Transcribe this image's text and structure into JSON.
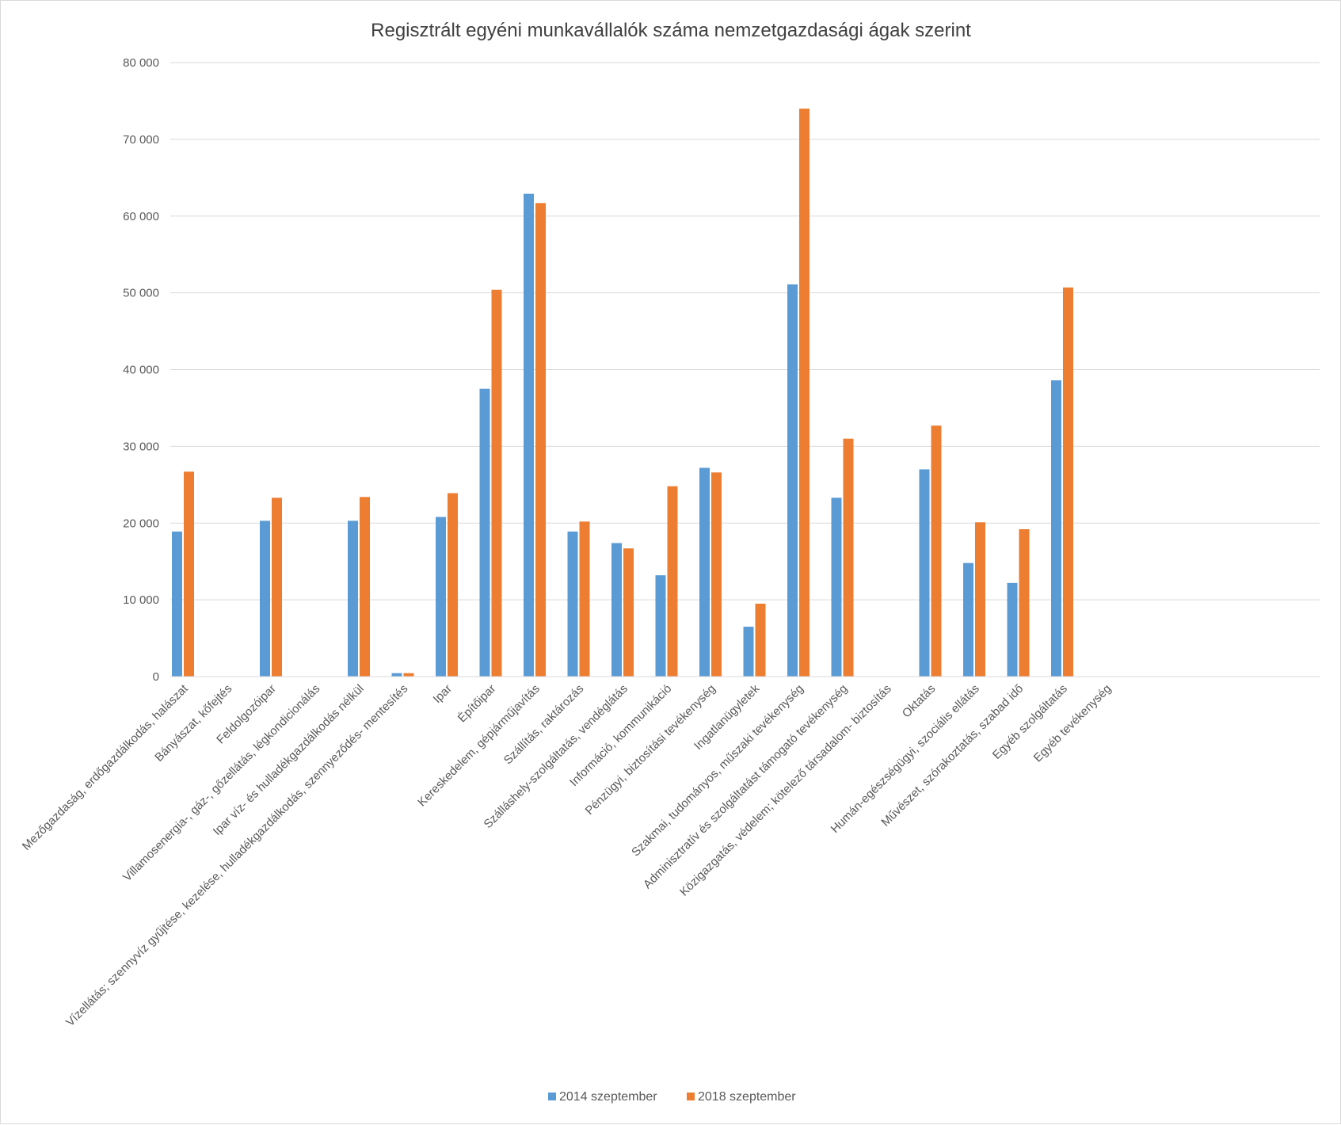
{
  "chart_data": {
    "type": "bar",
    "title": "Regisztrált egyéni munkavállalók száma nemzetgazdasági  ágak szerint",
    "xlabel": "",
    "ylabel": "",
    "ylim": [
      0,
      80000
    ],
    "yticks": [
      0,
      10000,
      20000,
      30000,
      40000,
      50000,
      60000,
      70000,
      80000
    ],
    "ytick_labels": [
      "0",
      "10 000",
      "20 000",
      "30 000",
      "40 000",
      "50 000",
      "60 000",
      "70 000",
      "80 000"
    ],
    "grid": true,
    "legend_position": "bottom",
    "categories": [
      "Mezőgazdaság, erdőgazdálkodás, halászat",
      "Bányászat, kőfejtés",
      "Feldolgozóipar",
      "Villamosenergia-, gáz-, gőzellátás, légkondicionálás",
      "Ipar víz- és hulladékgazdálkodás nélkül",
      "Vízellátás; szennyvíz gyűjtése, kezelése, hulladékgazdálkodás, szennyeződés- mentesítés",
      "Ipar",
      "Építőipar",
      "Kereskedelem, gépjárműjavítás",
      "Szállítás, raktározás",
      "Szálláshely-szolgáltatás, vendéglátás",
      "Információ, kommunikáció",
      "Pénzügyi, biztosítási tevékenység",
      "Ingatlanügyletek",
      "Szakmai, tudományos, műszaki tevékenység",
      "Adminisztratív és szolgáltatást támogató tevékenység",
      "Közigazgatás, védelem; kötelező társadalom- biztosítás",
      "Oktatás",
      "Humán-egészségügyi, szociális ellátás",
      "Művészet, szórakoztatás, szabad idő",
      "Egyéb szolgáltatás",
      "Egyéb tevékenység"
    ],
    "series": [
      {
        "name": "2014 szeptember",
        "color": "#5b9bd5",
        "values": [
          18900,
          0,
          20300,
          0,
          20300,
          450,
          20800,
          37500,
          62900,
          18900,
          17400,
          13200,
          27200,
          6500,
          51100,
          23300,
          0,
          27000,
          14800,
          12200,
          38600,
          0
        ]
      },
      {
        "name": "2018 szeptember",
        "color": "#ed7d31",
        "values": [
          26700,
          0,
          23300,
          0,
          23400,
          450,
          23900,
          50400,
          61700,
          20200,
          16700,
          24800,
          26600,
          9500,
          74000,
          31000,
          0,
          32700,
          20100,
          19200,
          50700,
          0
        ]
      }
    ]
  }
}
